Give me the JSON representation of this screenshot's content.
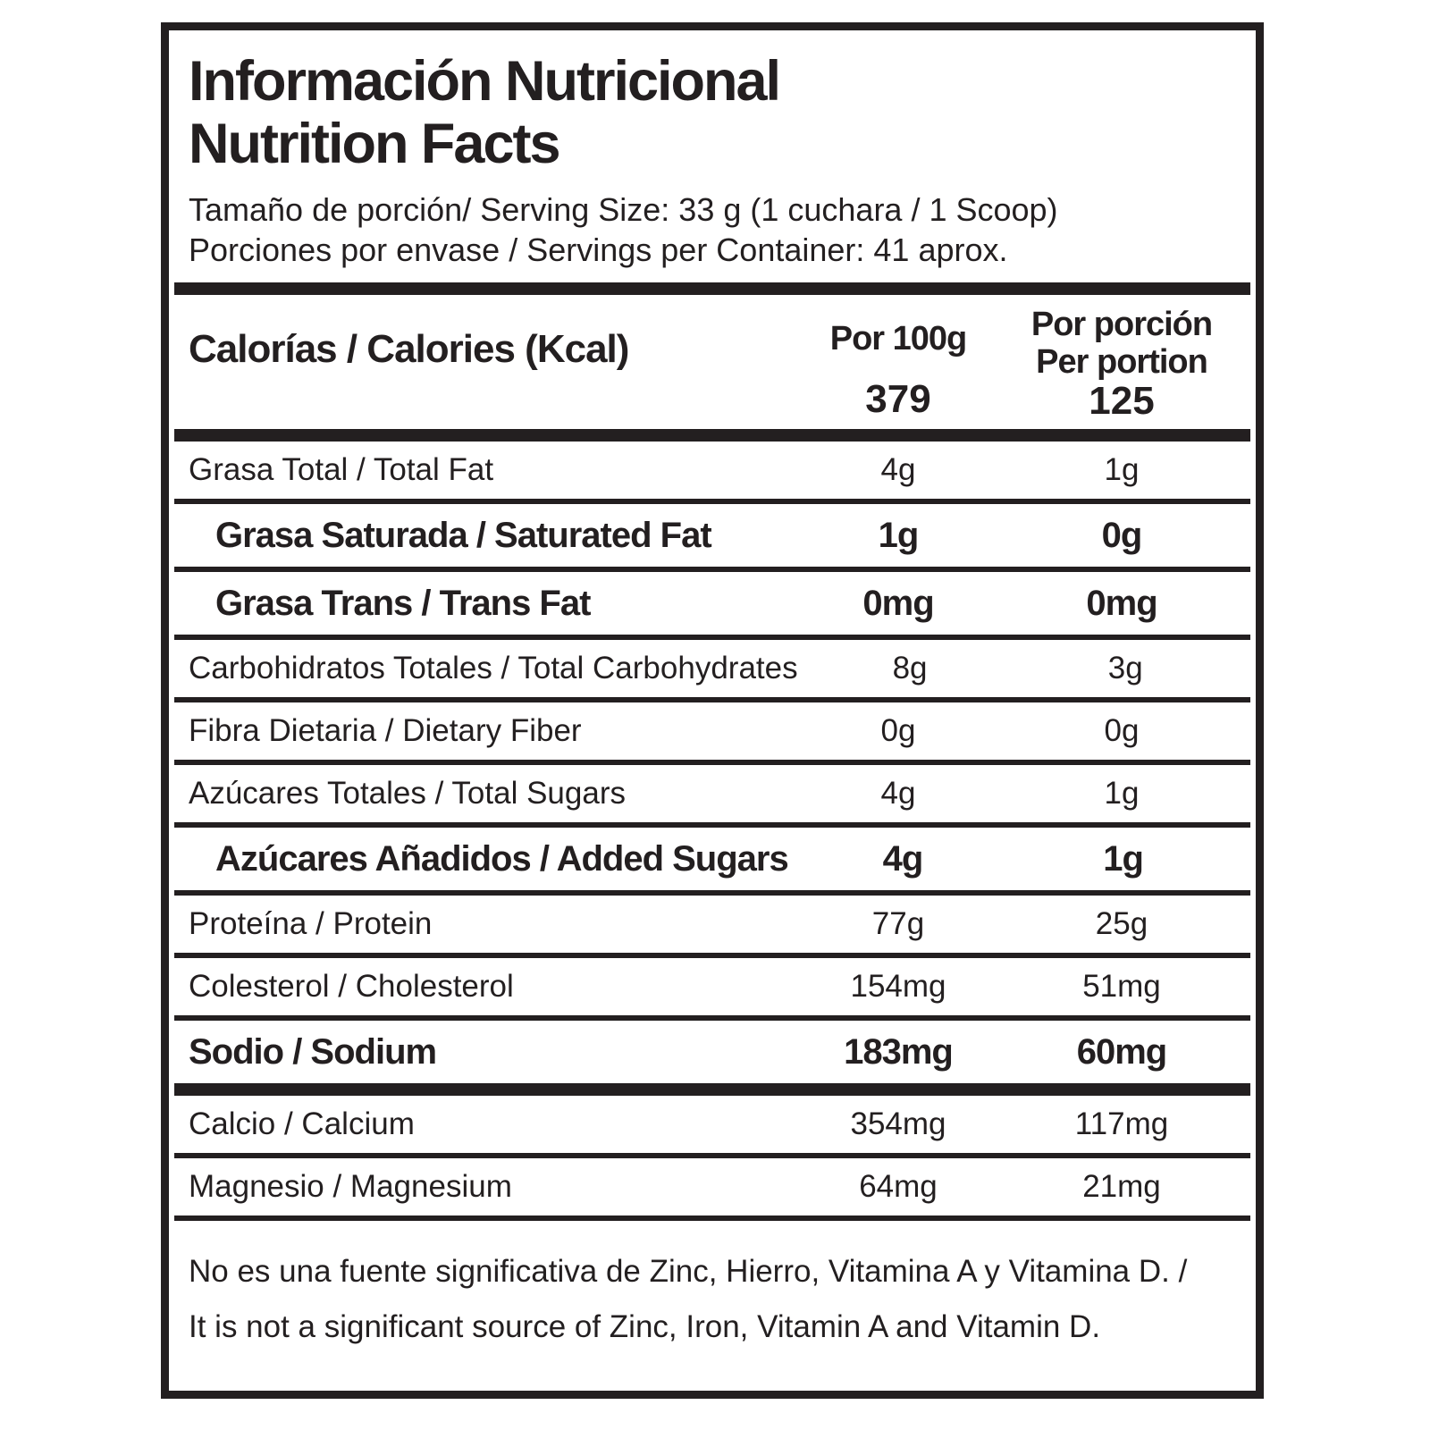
{
  "label": {
    "title_line1": "Información Nutricional",
    "title_line2": "Nutrition Facts",
    "serving_size": "Tamaño de porción/ Serving Size: 33 g (1 cuchara / 1 Scoop)",
    "servings_per_container": "Porciones por envase / Servings per Container: 41 aprox.",
    "calories": {
      "label": "Calorías / Calories  (Kcal)",
      "col1_header": "Por 100g",
      "col2_header_line1": "Por porción",
      "col2_header_line2": "Per portion",
      "col1_value": "379",
      "col2_value": "125"
    },
    "rows": [
      {
        "label": "Grasa Total / Total Fat",
        "per_100g": "4g",
        "per_portion": "1g",
        "style": "regular"
      },
      {
        "label": "Grasa Saturada / Saturated Fat",
        "per_100g": "1g",
        "per_portion": "0g",
        "style": "bold-indent"
      },
      {
        "label": "Grasa Trans / Trans Fat",
        "per_100g": "0mg",
        "per_portion": "0mg",
        "style": "bold-indent"
      },
      {
        "label": "Carbohidratos Totales / Total Carbohydrates",
        "per_100g": "8g",
        "per_portion": "3g",
        "style": "regular"
      },
      {
        "label": "Fibra Dietaria  /  Dietary Fiber",
        "per_100g": "0g",
        "per_portion": "0g",
        "style": "regular"
      },
      {
        "label": "Azúcares Totales / Total Sugars",
        "per_100g": "4g",
        "per_portion": "1g",
        "style": "regular"
      },
      {
        "label": "Azúcares Añadidos / Added Sugars",
        "per_100g": "4g",
        "per_portion": "1g",
        "style": "bold-indent"
      },
      {
        "label": "Proteína / Protein",
        "per_100g": "77g",
        "per_portion": "25g",
        "style": "regular"
      },
      {
        "label": "Colesterol / Cholesterol",
        "per_100g": "154mg",
        "per_portion": "51mg",
        "style": "regular"
      },
      {
        "label": "Sodio /  Sodium",
        "per_100g": "183mg",
        "per_portion": "60mg",
        "style": "bold-thick-after"
      },
      {
        "label": "Calcio / Calcium",
        "per_100g": "354mg",
        "per_portion": "117mg",
        "style": "regular"
      },
      {
        "label": "Magnesio / Magnesium",
        "per_100g": "64mg",
        "per_portion": "21mg",
        "style": "regular"
      }
    ],
    "footnote_line1": "No es una fuente significativa de Zinc, Hierro, Vitamina A y Vitamina D. /",
    "footnote_line2": "It is not a significant source of Zinc, Iron, Vitamin A and Vitamin D.",
    "colors": {
      "text": "#231f20",
      "background": "#ffffff"
    }
  }
}
